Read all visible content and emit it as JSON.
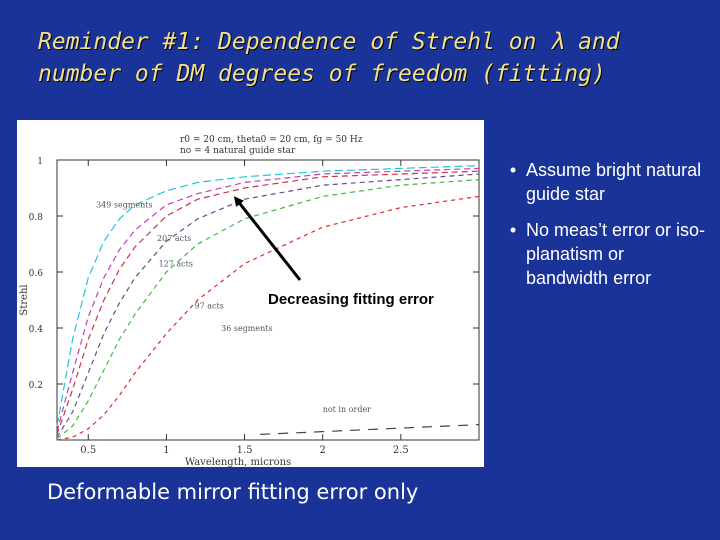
{
  "slide": {
    "title_line1_pre": "Reminder #1: Dependence of Strehl on ",
    "title_lambda": "λ",
    "title_line1_post": " and",
    "title_line2": "number of DM degrees of freedom (fitting)",
    "bullets": [
      "Assume bright natural guide star",
      "No meas’t error or iso-planatism or bandwidth error"
    ],
    "bullet_symbol": "•",
    "caption": "Deformable mirror fitting error only",
    "arrow_label": "Decreasing fitting error"
  },
  "colors": {
    "background": "#1a3399",
    "title": "#f2e08a",
    "text": "#ffffff"
  },
  "chart_data": {
    "type": "line",
    "header_lines": [
      "r0 = 20 cm, theta0 = 20 cm, fg = 50 Hz",
      "no = 4 natural guide star"
    ],
    "xlabel": "Wavelength, microns",
    "ylabel": "Strehl",
    "xlim": [
      0.3,
      3.0
    ],
    "ylim": [
      0,
      1
    ],
    "xticks": [
      0.5,
      1,
      1.5,
      2,
      2.5
    ],
    "xtick_labels": [
      "0.5",
      "1",
      "1.5",
      "2",
      "2.5"
    ],
    "yticks": [
      0.2,
      0.4,
      0.6,
      0.8,
      1.0
    ],
    "ytick_labels": [
      "0.2",
      "0.4",
      "0.6",
      "0.8",
      "1"
    ],
    "series_labels": [
      {
        "text": "349 segments",
        "x": 0.55,
        "y": 0.83
      },
      {
        "text": "207 acts",
        "x": 0.94,
        "y": 0.71
      },
      {
        "text": "127 acts",
        "x": 0.95,
        "y": 0.62
      },
      {
        "text": "97 acts",
        "x": 1.18,
        "y": 0.47
      },
      {
        "text": "36 segments",
        "x": 1.35,
        "y": 0.39
      },
      {
        "text": "not in order",
        "x": 2.0,
        "y": 0.1
      }
    ],
    "series": [
      {
        "color": "#22c4d8",
        "dash": "8 4",
        "x": [
          0.3,
          0.4,
          0.5,
          0.6,
          0.7,
          0.8,
          1.0,
          1.2,
          1.5,
          2.0,
          2.5,
          3.0
        ],
        "values": [
          0.05,
          0.36,
          0.58,
          0.71,
          0.79,
          0.84,
          0.89,
          0.92,
          0.94,
          0.96,
          0.97,
          0.98
        ]
      },
      {
        "color": "#c43fb0",
        "dash": "6 4",
        "x": [
          0.3,
          0.4,
          0.5,
          0.6,
          0.7,
          0.8,
          1.0,
          1.2,
          1.5,
          2.0,
          2.5,
          3.0
        ],
        "values": [
          0.03,
          0.24,
          0.44,
          0.58,
          0.68,
          0.75,
          0.84,
          0.88,
          0.92,
          0.95,
          0.96,
          0.97
        ]
      },
      {
        "color": "#cc3344",
        "dash": "6 4",
        "x": [
          0.3,
          0.4,
          0.5,
          0.6,
          0.7,
          0.8,
          1.0,
          1.2,
          1.5,
          2.0,
          2.5,
          3.0
        ],
        "values": [
          0.02,
          0.18,
          0.36,
          0.5,
          0.61,
          0.69,
          0.8,
          0.86,
          0.9,
          0.94,
          0.95,
          0.96
        ]
      },
      {
        "color": "#6a4a8a",
        "dash": "5 4",
        "x": [
          0.3,
          0.4,
          0.5,
          0.6,
          0.7,
          0.8,
          1.0,
          1.2,
          1.5,
          2.0,
          2.5,
          3.0
        ],
        "values": [
          0.01,
          0.1,
          0.24,
          0.38,
          0.49,
          0.58,
          0.71,
          0.79,
          0.86,
          0.91,
          0.93,
          0.95
        ]
      },
      {
        "color": "#3dbb3d",
        "dash": "5 4",
        "x": [
          0.3,
          0.4,
          0.5,
          0.6,
          0.7,
          0.8,
          1.0,
          1.2,
          1.5,
          2.0,
          2.5,
          3.0
        ],
        "values": [
          0.005,
          0.05,
          0.14,
          0.25,
          0.36,
          0.45,
          0.6,
          0.7,
          0.79,
          0.87,
          0.91,
          0.93
        ]
      },
      {
        "color": "#dd2a2a",
        "dash": "4 4",
        "x": [
          0.3,
          0.4,
          0.5,
          0.6,
          0.7,
          0.8,
          1.0,
          1.2,
          1.5,
          2.0,
          2.5,
          3.0
        ],
        "values": [
          0.0,
          0.01,
          0.04,
          0.09,
          0.16,
          0.24,
          0.38,
          0.5,
          0.63,
          0.76,
          0.83,
          0.87
        ]
      },
      {
        "color": "#444444",
        "dash": "10 8",
        "x": [
          1.6,
          1.8,
          2.0,
          2.2,
          2.4,
          2.6,
          2.8,
          3.0
        ],
        "values": [
          0.02,
          0.025,
          0.03,
          0.035,
          0.04,
          0.045,
          0.05,
          0.055
        ]
      }
    ],
    "grid": false
  }
}
